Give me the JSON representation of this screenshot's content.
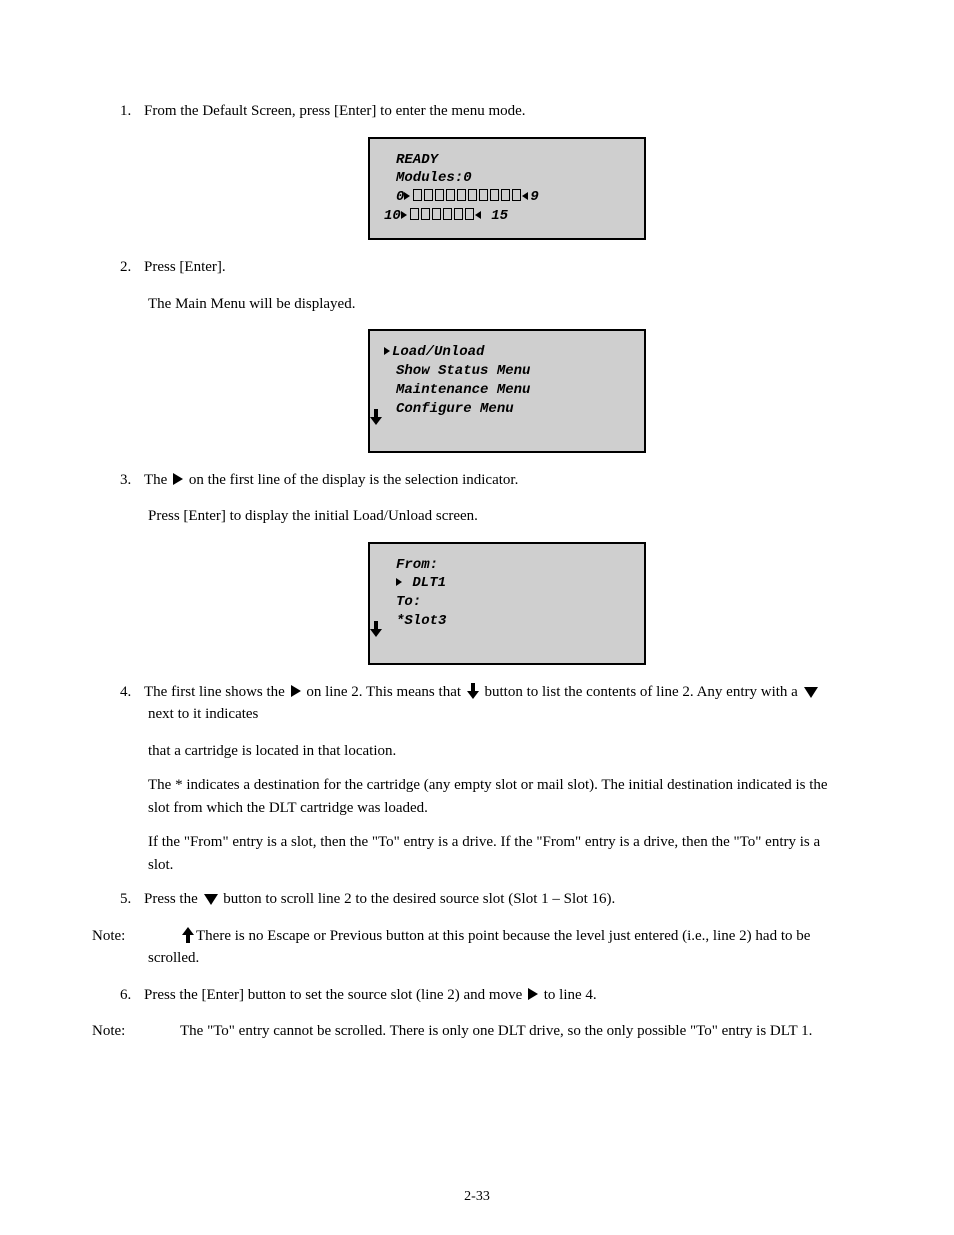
{
  "steps": {
    "s1": {
      "num": "1.",
      "text_before": "From the Default Screen, press [Enter] to enter the menu mode."
    },
    "s2": {
      "num": "2.",
      "text": "Press [Enter]."
    },
    "s3": {
      "num": "3.",
      "text_a": "The ",
      "text_b": " on the first line of the display is the selection indicator."
    },
    "s4": {
      "num": "4.",
      "line1_a": "The first line shows the ",
      "line1_b": " on line 2. This means that ",
      "line1_c": " button to list the contents of line 2. Any entry with a ",
      "line1_d": " next to it indicates ",
      "line2": "that a cartridge is located in that location.",
      "star_note_a": "The * indicates a destination for the cartridge (any empty slot or mail slot). The initial destination indicated is the slot from which the DLT cartridge was loaded.",
      "from_note_a": "If the \"From\" entry is a slot, then the \"To\" entry is a drive. If the \"From\" entry is a drive, then the \"To\" entry is a slot."
    },
    "notes": {
      "label": "Note:",
      "n1": "There is no Escape or Previous button at this point because the level just entered (i.e., line 2) had to be scrolled.",
      "n2": "The \"To\" entry cannot be scrolled. There is only one DLT drive, so the only possible \"To\" entry is DLT 1."
    },
    "s5": {
      "num": "5.",
      "text_a": "Press the ",
      "text_b": " button to scroll line 2 to the desired source slot (Slot 1 – Slot 16)."
    },
    "s6": {
      "num": "6.",
      "text_a": "Press the [Enter] button to set the source slot (line 2) and move ",
      "text_b": " to line 4."
    }
  },
  "lcd1": {
    "l1": "READY",
    "l2": "Modules:0",
    "row0_start": "0",
    "row0_end": "9",
    "row1_start": "10",
    "row1_end": "15"
  },
  "lcd2": {
    "items": [
      "Load/Unload",
      "Show Status Menu",
      "Maintenance Menu",
      "Configure Menu"
    ]
  },
  "lcd3": {
    "l1": "From:",
    "l2": "DLT1",
    "l3": "To:",
    "l4": "*Slot3"
  },
  "footer": "2-33"
}
